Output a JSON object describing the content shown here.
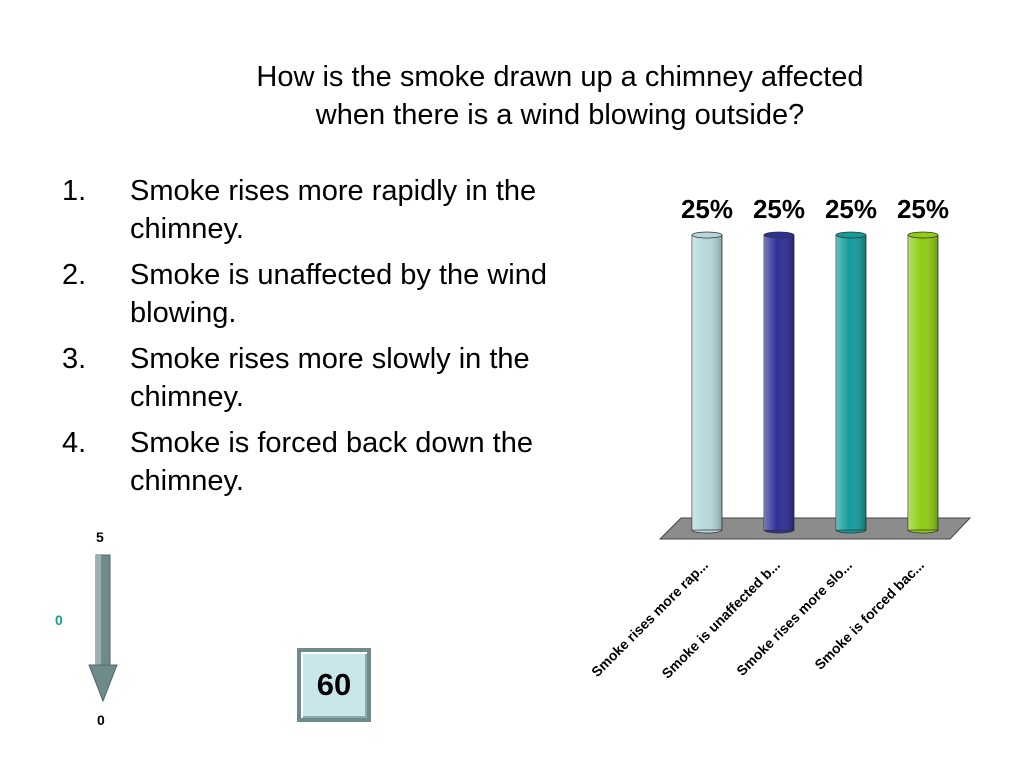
{
  "question": {
    "line1": "How is the smoke drawn up a chimney affected",
    "line2": "when there is a wind blowing outside?"
  },
  "answers": [
    {
      "num": "1.",
      "text": "Smoke rises more rapidly in the chimney."
    },
    {
      "num": "2.",
      "text": "Smoke is unaffected by the wind blowing."
    },
    {
      "num": "3.",
      "text": "Smoke rises more slowly in the chimney."
    },
    {
      "num": "4.",
      "text": "Smoke is forced back down the chimney."
    }
  ],
  "countdown": {
    "top": "5",
    "mid": "0",
    "bottom": "0"
  },
  "timer": {
    "value": "60"
  },
  "colors": {
    "bar1": "#b5d8dc",
    "bar2": "#2c2f96",
    "bar3": "#139b9b",
    "bar4": "#8fcc12",
    "floor": "#8c8c8c",
    "teal_text": "#1a9a9a",
    "arrow": "#6f8a8a"
  },
  "chart_data": {
    "type": "bar",
    "categories": [
      "Smoke rises more rap...",
      "Smoke is unaffected b...",
      "Smoke rises more slo...",
      "Smoke is forced bac..."
    ],
    "values": [
      25,
      25,
      25,
      25
    ],
    "value_labels": [
      "25%",
      "25%",
      "25%",
      "25%"
    ],
    "ylim": [
      0,
      25
    ],
    "grid": false
  }
}
